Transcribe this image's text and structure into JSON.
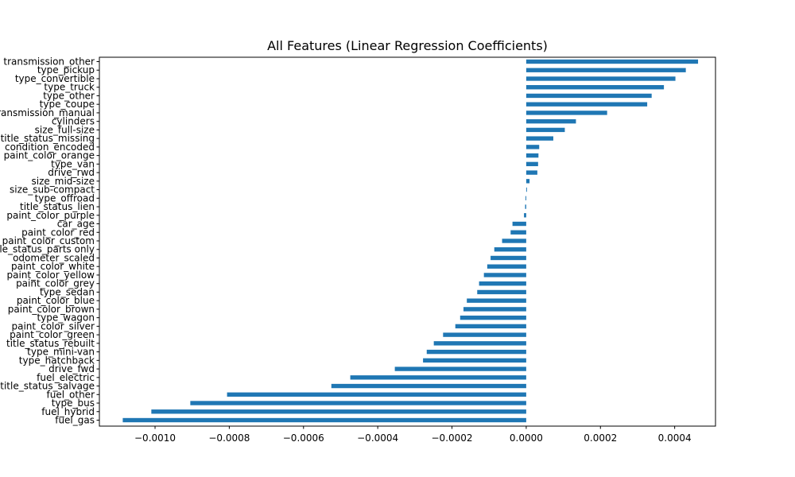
{
  "chart_data": {
    "type": "bar",
    "orientation": "horizontal",
    "title": "All Features (Linear Regression Coefficients)",
    "xlabel": "",
    "ylabel": "",
    "xlim": [
      -0.00115,
      0.00051
    ],
    "xticks": [
      -0.001,
      -0.0008,
      -0.0006,
      -0.0004,
      -0.0002,
      0.0,
      0.0002,
      0.0004
    ],
    "xtick_labels": [
      "−0.0010",
      "−0.0008",
      "−0.0006",
      "−0.0004",
      "−0.0002",
      "0.0000",
      "0.0002",
      "0.0004"
    ],
    "bar_color": "#1f77b4",
    "grid": false,
    "categories": [
      "transmission_other",
      "type_pickup",
      "type_convertible",
      "type_truck",
      "type_other",
      "type_coupe",
      "transmission_manual",
      "cylinders",
      "size_full-size",
      "title_status_missing",
      "condition_encoded",
      "paint_color_orange",
      "type_van",
      "drive_rwd",
      "size_mid-size",
      "size_sub-compact",
      "type_offroad",
      "title_status_lien",
      "paint_color_purple",
      "car_age",
      "paint_color_red",
      "paint_color_custom",
      "title_status_parts only",
      "odometer_scaled",
      "paint_color_white",
      "paint_color_yellow",
      "paint_color_grey",
      "type_sedan",
      "paint_color_blue",
      "paint_color_brown",
      "type_wagon",
      "paint_color_silver",
      "paint_color_green",
      "title_status_rebuilt",
      "type_mini-van",
      "type_hatchback",
      "drive_fwd",
      "fuel_electric",
      "title_status_salvage",
      "fuel_other",
      "type_bus",
      "fuel_hybrid",
      "fuel_gas"
    ],
    "values": [
      0.000463,
      0.00043,
      0.000402,
      0.000371,
      0.000338,
      0.000326,
      0.000218,
      0.000134,
      0.000104,
      7.3e-05,
      3.5e-05,
      3.3e-05,
      3.2e-05,
      3e-05,
      9e-06,
      2e-06,
      -2e-06,
      -3e-06,
      -6e-06,
      -3.7e-05,
      -4.2e-05,
      -6.5e-05,
      -8.6e-05,
      -9.6e-05,
      -0.000105,
      -0.000114,
      -0.000127,
      -0.000132,
      -0.00016,
      -0.000169,
      -0.000178,
      -0.000191,
      -0.000224,
      -0.000249,
      -0.000268,
      -0.000278,
      -0.000354,
      -0.000474,
      -0.000525,
      -0.000806,
      -0.000905,
      -0.00101,
      -0.001087
    ]
  }
}
